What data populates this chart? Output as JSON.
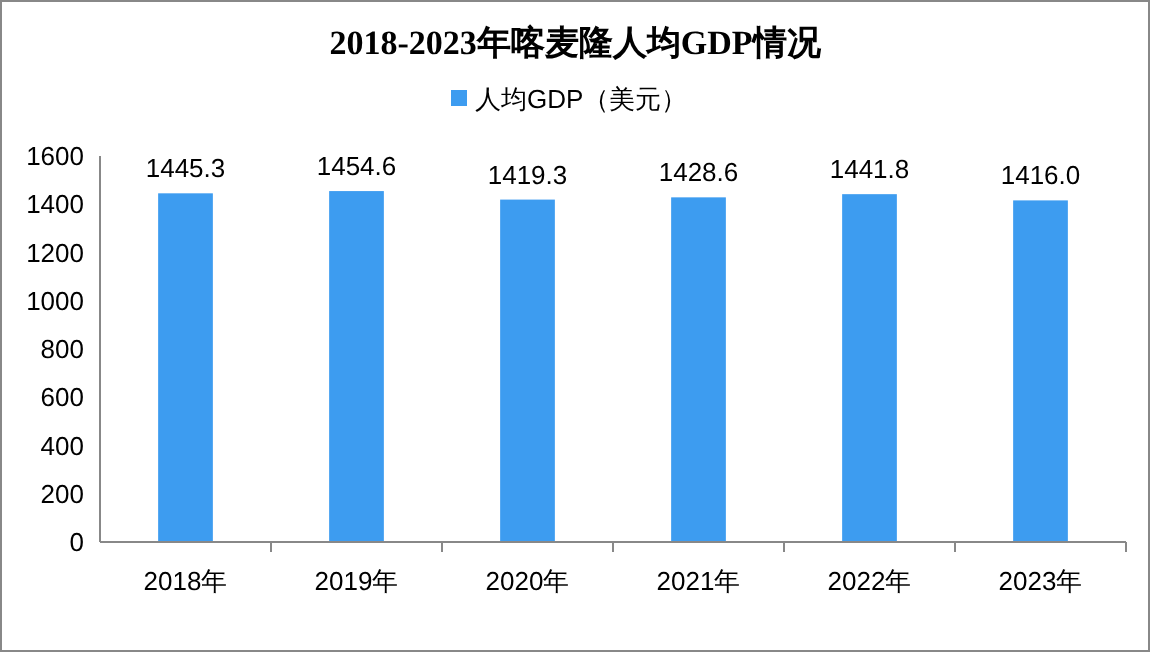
{
  "chart_data": {
    "type": "bar",
    "title": "2018-2023年喀麦隆人均GDP情况",
    "categories": [
      "2018年",
      "2019年",
      "2020年",
      "2021年",
      "2022年",
      "2023年"
    ],
    "series": [
      {
        "name": "人均GDP（美元）",
        "color": "#3d9cf0",
        "values": [
          1445.3,
          1454.6,
          1419.3,
          1428.6,
          1441.8,
          1416.0
        ]
      }
    ],
    "value_labels": [
      "1445.3",
      "1454.6",
      "1419.3",
      "1428.6",
      "1441.8",
      "1416.0"
    ],
    "ylim": [
      0,
      1600
    ],
    "yticks": [
      0,
      200,
      400,
      600,
      800,
      1000,
      1200,
      1400,
      1600
    ],
    "grid": false,
    "legend": "top"
  }
}
